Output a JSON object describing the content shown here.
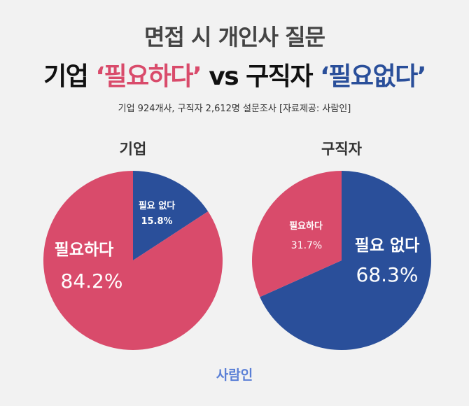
{
  "header": {
    "title_line1": "면접 시 개인사 질문",
    "title_line2_part1": "기업 ",
    "title_line2_highlight1": "‘필요하다’",
    "title_line2_mid": " vs 구직자 ",
    "title_line2_highlight2": "‘필요없다’",
    "subtitle": "기업 924개사, 구직자 2,612명 설문조사  [자료제공: 사람인]"
  },
  "colors": {
    "pink": "#d94b6b",
    "blue": "#2a4f9a"
  },
  "chart_data": [
    {
      "type": "pie",
      "title": "기업",
      "slices": [
        {
          "label": "필요 없다",
          "value": 15.8,
          "value_label": "15.8%",
          "color": "#2a4f9a"
        },
        {
          "label": "필요하다",
          "value": 84.2,
          "value_label": "84.2%",
          "color": "#d94b6b"
        }
      ]
    },
    {
      "type": "pie",
      "title": "구직자",
      "slices": [
        {
          "label": "필요 없다",
          "value": 68.3,
          "value_label": "68.3%",
          "color": "#2a4f9a"
        },
        {
          "label": "필요하다",
          "value": 31.7,
          "value_label": "31.7%",
          "color": "#d94b6b"
        }
      ]
    }
  ],
  "footer": {
    "brand": "사람인"
  }
}
